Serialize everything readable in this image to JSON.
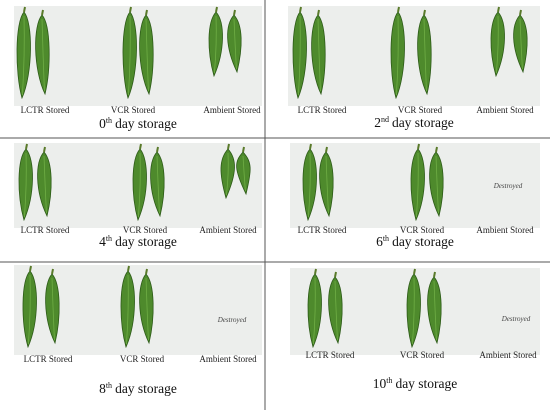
{
  "panels": [
    {
      "day": "0",
      "suffix": "th",
      "text": "day storage",
      "labels": [
        "LCTR Stored",
        "VCR Stored",
        "Ambient Stored"
      ]
    },
    {
      "day": "2",
      "suffix": "nd",
      "text": "day storage",
      "labels": [
        "LCTR Stored",
        "VCR Stored",
        "Ambient Stored"
      ]
    },
    {
      "day": "4",
      "suffix": "th",
      "text": "day storage",
      "labels": [
        "LCTR Stored",
        "VCR Stored",
        "Ambient Stored"
      ]
    },
    {
      "day": "6",
      "suffix": "th",
      "text": "day storage",
      "labels": [
        "LCTR Stored",
        "VCR Stored",
        "Ambient Stored"
      ],
      "note": "Destroyed"
    },
    {
      "day": "8",
      "suffix": "th",
      "text": "day storage",
      "labels": [
        "LCTR Stored",
        "VCR Stored",
        "Ambient Stored"
      ],
      "note": "Destroyed"
    },
    {
      "day": "10",
      "suffix": "th",
      "text": "day storage",
      "labels": [
        "LCTR Stored",
        "VCR Stored",
        "Ambient Stored"
      ],
      "note": "Destroyed"
    }
  ]
}
